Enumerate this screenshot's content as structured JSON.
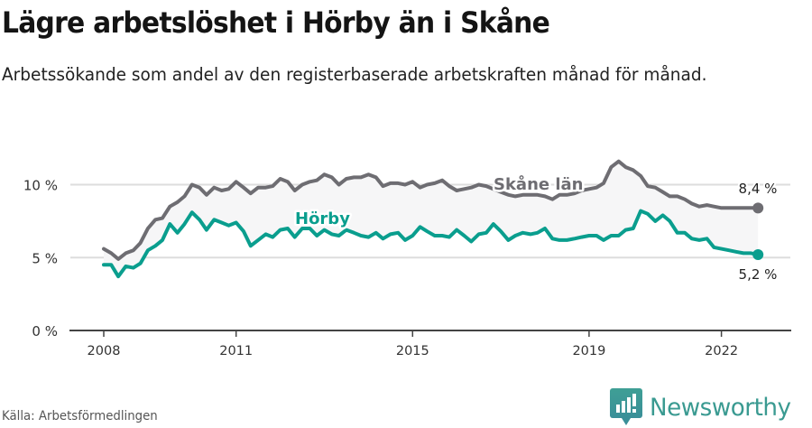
{
  "header": {
    "title": "Lägre arbetslöshet i Hörby än i Skåne",
    "subtitle": "Arbetssökande som andel av den registerbaserade arbetskraften månad för månad."
  },
  "footer": {
    "source": "Källa: Arbetsförmedlingen",
    "logo_text": "Newsworthy",
    "logo_icon": "bar-chart-speech-bubble-icon"
  },
  "colors": {
    "skane": "#6e6d72",
    "horby": "#0a9e8e",
    "band_fill": "#f6f6f7",
    "grid": "#dddddd",
    "axis": "#444444",
    "logo": "#3a9a91"
  },
  "chart_data": {
    "type": "line",
    "title": "Lägre arbetslöshet i Hörby än i Skåne",
    "subtitle": "Arbetssökande som andel av den registerbaserade arbetskraften månad för månad.",
    "xlabel": "",
    "ylabel": "",
    "ylim": [
      0,
      11.5
    ],
    "yticks": [
      0,
      5,
      10
    ],
    "ytick_labels": [
      "0 %",
      "5 %",
      "10 %"
    ],
    "xticks": [
      2008,
      2011,
      2015,
      2019,
      2022
    ],
    "xtick_labels": [
      "2008",
      "2011",
      "2015",
      "2019",
      "2022"
    ],
    "grid": true,
    "legend": "inline labels",
    "series": [
      {
        "name": "Skåne län",
        "end_label": "8,4 %",
        "x": [
          2008.0,
          2008.17,
          2008.33,
          2008.5,
          2008.67,
          2008.83,
          2009.0,
          2009.17,
          2009.33,
          2009.5,
          2009.67,
          2009.83,
          2010.0,
          2010.17,
          2010.33,
          2010.5,
          2010.67,
          2010.83,
          2011.0,
          2011.17,
          2011.33,
          2011.5,
          2011.67,
          2011.83,
          2012.0,
          2012.17,
          2012.33,
          2012.5,
          2012.67,
          2012.83,
          2013.0,
          2013.17,
          2013.33,
          2013.5,
          2013.67,
          2013.83,
          2014.0,
          2014.17,
          2014.33,
          2014.5,
          2014.67,
          2014.83,
          2015.0,
          2015.17,
          2015.33,
          2015.5,
          2015.67,
          2015.83,
          2016.0,
          2016.17,
          2016.33,
          2016.5,
          2016.67,
          2016.83,
          2017.0,
          2017.17,
          2017.33,
          2017.5,
          2017.67,
          2017.83,
          2018.0,
          2018.17,
          2018.33,
          2018.5,
          2018.67,
          2018.83,
          2019.0,
          2019.17,
          2019.33,
          2019.5,
          2019.67,
          2019.83,
          2020.0,
          2020.17,
          2020.33,
          2020.5,
          2020.67,
          2020.83,
          2021.0,
          2021.17,
          2021.33,
          2021.5,
          2021.67,
          2021.83,
          2022.0,
          2022.17,
          2022.33,
          2022.5,
          2022.67,
          2022.83
        ],
        "values": [
          5.6,
          5.3,
          4.9,
          5.3,
          5.5,
          6.0,
          7.0,
          7.6,
          7.7,
          8.5,
          8.8,
          9.2,
          10.0,
          9.8,
          9.3,
          9.8,
          9.6,
          9.7,
          10.2,
          9.8,
          9.4,
          9.8,
          9.8,
          9.9,
          10.4,
          10.2,
          9.6,
          10.0,
          10.2,
          10.3,
          10.7,
          10.5,
          10.0,
          10.4,
          10.5,
          10.5,
          10.7,
          10.5,
          9.9,
          10.1,
          10.1,
          10.0,
          10.2,
          9.8,
          10.0,
          10.1,
          10.3,
          9.9,
          9.6,
          9.7,
          9.8,
          10.0,
          9.9,
          9.7,
          9.5,
          9.3,
          9.2,
          9.3,
          9.3,
          9.3,
          9.2,
          9.0,
          9.3,
          9.3,
          9.4,
          9.6,
          9.7,
          9.8,
          10.1,
          11.2,
          11.6,
          11.2,
          11.0,
          10.6,
          9.9,
          9.8,
          9.5,
          9.2,
          9.2,
          9.0,
          8.7,
          8.5,
          8.6,
          8.5,
          8.4,
          8.4,
          8.4,
          8.4,
          8.4,
          8.4
        ]
      },
      {
        "name": "Hörby",
        "end_label": "5,2 %",
        "x": [
          2008.0,
          2008.17,
          2008.33,
          2008.5,
          2008.67,
          2008.83,
          2009.0,
          2009.17,
          2009.33,
          2009.5,
          2009.67,
          2009.83,
          2010.0,
          2010.17,
          2010.33,
          2010.5,
          2010.67,
          2010.83,
          2011.0,
          2011.17,
          2011.33,
          2011.5,
          2011.67,
          2011.83,
          2012.0,
          2012.17,
          2012.33,
          2012.5,
          2012.67,
          2012.83,
          2013.0,
          2013.17,
          2013.33,
          2013.5,
          2013.67,
          2013.83,
          2014.0,
          2014.17,
          2014.33,
          2014.5,
          2014.67,
          2014.83,
          2015.0,
          2015.17,
          2015.33,
          2015.5,
          2015.67,
          2015.83,
          2016.0,
          2016.17,
          2016.33,
          2016.5,
          2016.67,
          2016.83,
          2017.0,
          2017.17,
          2017.33,
          2017.5,
          2017.67,
          2017.83,
          2018.0,
          2018.17,
          2018.33,
          2018.5,
          2018.67,
          2018.83,
          2019.0,
          2019.17,
          2019.33,
          2019.5,
          2019.67,
          2019.83,
          2020.0,
          2020.17,
          2020.33,
          2020.5,
          2020.67,
          2020.83,
          2021.0,
          2021.17,
          2021.33,
          2021.5,
          2021.67,
          2021.83,
          2022.0,
          2022.17,
          2022.33,
          2022.5,
          2022.67,
          2022.83
        ],
        "values": [
          4.5,
          4.5,
          3.7,
          4.4,
          4.3,
          4.6,
          5.5,
          5.8,
          6.2,
          7.3,
          6.7,
          7.3,
          8.1,
          7.6,
          6.9,
          7.6,
          7.4,
          7.2,
          7.4,
          6.8,
          5.8,
          6.2,
          6.6,
          6.4,
          6.9,
          7.0,
          6.4,
          7.0,
          7.0,
          6.5,
          6.9,
          6.6,
          6.5,
          6.9,
          6.7,
          6.5,
          6.4,
          6.7,
          6.3,
          6.6,
          6.7,
          6.2,
          6.5,
          7.1,
          6.8,
          6.5,
          6.5,
          6.4,
          6.9,
          6.5,
          6.1,
          6.6,
          6.7,
          7.3,
          6.8,
          6.2,
          6.5,
          6.7,
          6.6,
          6.7,
          7.0,
          6.3,
          6.2,
          6.2,
          6.3,
          6.4,
          6.5,
          6.5,
          6.2,
          6.5,
          6.5,
          6.9,
          7.0,
          8.2,
          8.0,
          7.5,
          7.9,
          7.5,
          6.7,
          6.7,
          6.3,
          6.2,
          6.3,
          5.7,
          5.6,
          5.5,
          5.4,
          5.3,
          5.3,
          5.2
        ]
      }
    ],
    "annotations": [
      {
        "text": "Skåne län",
        "near_x": 2017.2,
        "near_y": 10.1
      },
      {
        "text": "Hörby",
        "near_x": 2012.6,
        "near_y": 7.6
      },
      {
        "text": "8,4 %",
        "at_x": 2022.83,
        "at_y": 8.4,
        "position": "above"
      },
      {
        "text": "5,2 %",
        "at_x": 2022.83,
        "at_y": 5.2,
        "position": "below"
      }
    ]
  }
}
